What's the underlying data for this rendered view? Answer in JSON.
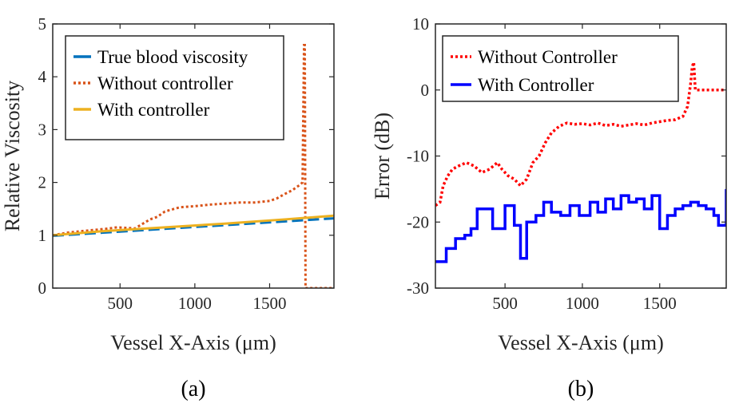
{
  "chart_data": [
    {
      "type": "line",
      "caption": "(a)",
      "xlabel": "Vessel X-Axis  (μm)",
      "ylabel": "Relative Viscosity",
      "xlim": [
        50,
        1930
      ],
      "ylim": [
        0,
        5
      ],
      "xticks": [
        500,
        1000,
        1500
      ],
      "yticks": [
        0,
        1,
        2,
        3,
        4,
        5
      ],
      "grid": false,
      "legend_position": "top-left",
      "series": [
        {
          "name": "True blood viscosity",
          "color": "#0072BD",
          "style": "dashed",
          "x": [
            50,
            1930
          ],
          "y": [
            0.99,
            1.32
          ]
        },
        {
          "name": "Without controller",
          "color": "#D95319",
          "style": "dotted",
          "x": [
            50,
            150,
            250,
            400,
            480,
            600,
            700,
            750,
            800,
            900,
            1000,
            1100,
            1200,
            1300,
            1400,
            1500,
            1550,
            1600,
            1650,
            1700,
            1720,
            1730,
            1735,
            1740,
            1930
          ],
          "y": [
            1.0,
            1.05,
            1.08,
            1.12,
            1.15,
            1.13,
            1.3,
            1.35,
            1.45,
            1.53,
            1.55,
            1.58,
            1.6,
            1.62,
            1.62,
            1.65,
            1.7,
            1.78,
            1.85,
            1.95,
            2.0,
            4.6,
            4.6,
            0.0,
            0.0
          ]
        },
        {
          "name": "With controller",
          "color": "#EDB120",
          "style": "solid",
          "x": [
            50,
            400,
            800,
            1200,
            1600,
            1930
          ],
          "y": [
            1.0,
            1.08,
            1.15,
            1.22,
            1.3,
            1.37
          ]
        }
      ]
    },
    {
      "type": "line",
      "caption": "(b)",
      "xlabel": "Vessel X-Axis  (μm)",
      "ylabel": "Error (dB)",
      "xlim": [
        50,
        1930
      ],
      "ylim": [
        -30,
        10
      ],
      "xticks": [
        500,
        1000,
        1500
      ],
      "yticks": [
        -30,
        -20,
        -10,
        0,
        10
      ],
      "grid": false,
      "legend_position": "top-left",
      "series": [
        {
          "name": "Without Controller",
          "color": "#FF0000",
          "style": "dotted",
          "x": [
            50,
            80,
            100,
            130,
            160,
            200,
            250,
            300,
            350,
            400,
            450,
            480,
            520,
            560,
            600,
            640,
            680,
            720,
            760,
            800,
            850,
            900,
            950,
            1000,
            1050,
            1100,
            1150,
            1200,
            1250,
            1300,
            1350,
            1400,
            1450,
            1500,
            1550,
            1600,
            1650,
            1680,
            1700,
            1710,
            1720,
            1730,
            1930
          ],
          "y": [
            -17.5,
            -17,
            -14.5,
            -13,
            -12,
            -11.5,
            -11,
            -11.5,
            -12.5,
            -12,
            -11,
            -12,
            -13,
            -13.5,
            -14.5,
            -13.5,
            -11,
            -10,
            -8,
            -6.5,
            -5.5,
            -5,
            -5.2,
            -5.1,
            -5.3,
            -5,
            -5.4,
            -5.2,
            -5.5,
            -5.3,
            -5.1,
            -5.3,
            -5,
            -4.8,
            -4.6,
            -4.5,
            -4,
            -2.5,
            1,
            3.5,
            4.2,
            0,
            0
          ]
        },
        {
          "name": "With Controller",
          "color": "#0000FF",
          "style": "solid",
          "x": [
            50,
            120,
            180,
            240,
            280,
            320,
            380,
            420,
            500,
            560,
            600,
            640,
            700,
            750,
            800,
            860,
            920,
            980,
            1050,
            1100,
            1150,
            1200,
            1250,
            1300,
            1350,
            1400,
            1450,
            1500,
            1550,
            1600,
            1650,
            1700,
            1750,
            1800,
            1850,
            1880,
            1930
          ],
          "y": [
            -26,
            -24,
            -22.5,
            -22,
            -21,
            -18,
            -18,
            -21,
            -17.5,
            -20.5,
            -25.5,
            -20,
            -19,
            -17,
            -18.5,
            -19,
            -17.5,
            -19,
            -17,
            -18.5,
            -16.5,
            -18,
            -16,
            -17,
            -16.5,
            -18,
            -16,
            -21,
            -19,
            -18,
            -17.5,
            -17,
            -17.5,
            -18,
            -19,
            -20.5,
            -15
          ]
        }
      ]
    }
  ]
}
